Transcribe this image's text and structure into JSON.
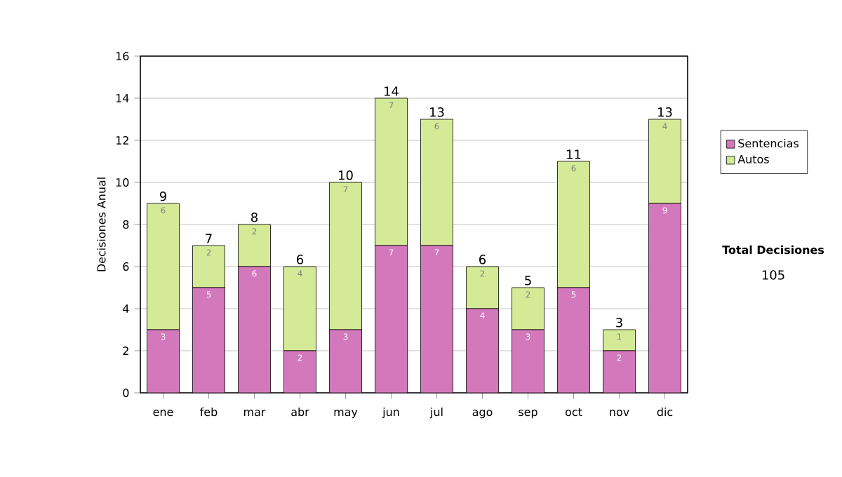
{
  "chart_data": {
    "type": "bar",
    "stacked": true,
    "ylabel": "Decisiones Anual",
    "categories": [
      "ene",
      "feb",
      "mar",
      "abr",
      "may",
      "jun",
      "jul",
      "ago",
      "sep",
      "oct",
      "nov",
      "dic"
    ],
    "series": [
      {
        "name": "Sentencias",
        "color": "#d478bc",
        "values": [
          3,
          5,
          6,
          2,
          3,
          7,
          7,
          4,
          3,
          5,
          2,
          9
        ]
      },
      {
        "name": "Autos",
        "color": "#d4ea96",
        "values": [
          6,
          2,
          2,
          4,
          7,
          7,
          6,
          2,
          2,
          6,
          1,
          4
        ]
      }
    ],
    "totals": [
      "9",
      "7",
      "8",
      "6",
      "10",
      "14",
      "13",
      "6",
      "5",
      "11",
      "3",
      "13"
    ],
    "data_labels": true,
    "ylim": [
      0,
      16
    ],
    "yticks": [
      0,
      2,
      4,
      6,
      8,
      10,
      12,
      14,
      16
    ],
    "grid": "y",
    "legend": "right",
    "annotations": [
      "Total Decisiones",
      "105"
    ]
  }
}
